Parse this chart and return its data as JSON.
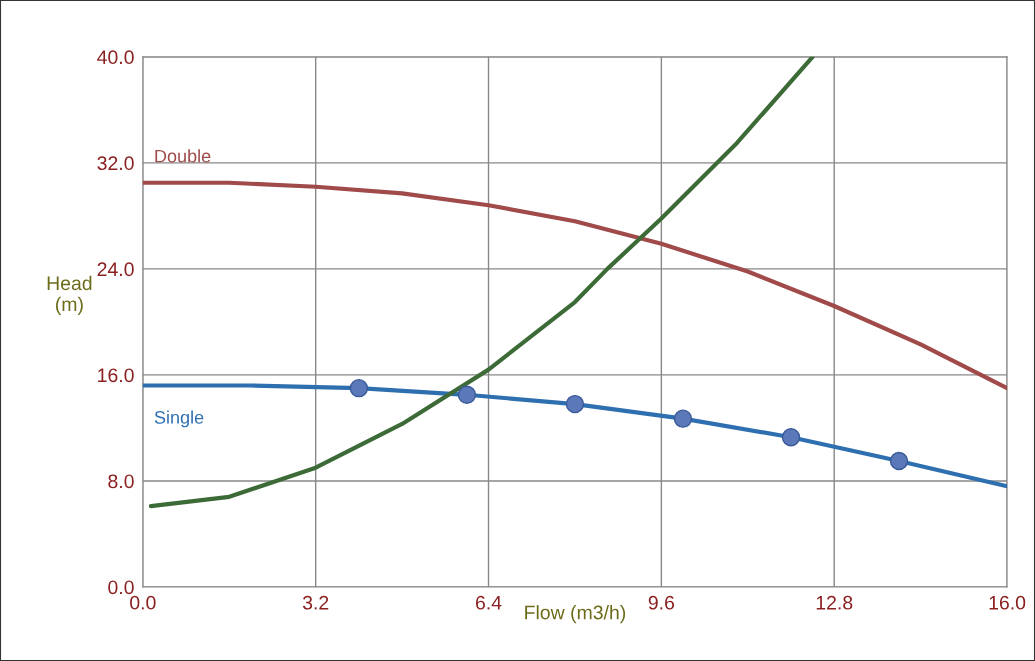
{
  "chart_data": {
    "type": "line",
    "xlabel": "Flow (m3/h)",
    "ylabel": "Head\n(m)",
    "series": [
      {
        "name": "Double",
        "color": "#a04a4a",
        "x": [
          0,
          1.6,
          3.2,
          4.8,
          6.4,
          8.0,
          9.6,
          11.2,
          12.8,
          14.4,
          16.0
        ],
        "values": [
          30.5,
          30.5,
          30.2,
          29.7,
          28.8,
          27.6,
          25.9,
          23.8,
          21.2,
          18.3,
          15.0
        ]
      },
      {
        "name": "Single",
        "color": "#2e6fb0",
        "x": [
          0,
          2,
          4,
          6,
          8,
          10,
          12,
          14,
          16
        ],
        "values": [
          15.2,
          15.2,
          15.0,
          14.5,
          13.8,
          12.7,
          11.3,
          9.5,
          7.6
        ]
      },
      {
        "color": "#5b78b8",
        "type": "scatter",
        "marker": "circle",
        "x": [
          4,
          6,
          8,
          10,
          12,
          14
        ],
        "values": [
          15.0,
          14.5,
          13.8,
          12.7,
          11.3,
          9.5
        ]
      },
      {
        "color": "#3d6b38",
        "x": [
          0.15,
          1.6,
          3.2,
          4.8,
          6.4,
          8.0,
          8.6,
          9.6,
          11.0,
          12.4
        ],
        "values": [
          6.1,
          6.8,
          9.0,
          12.3,
          16.4,
          21.5,
          24.0,
          27.8,
          33.5,
          40.0
        ]
      }
    ],
    "xlim": [
      0,
      16
    ],
    "ylim": [
      0,
      40
    ],
    "xticks": [
      {
        "value": 0,
        "label": "0.0"
      },
      {
        "value": 3.2,
        "label": "3.2"
      },
      {
        "value": 6.4,
        "label": "6.4"
      },
      {
        "value": 9.6,
        "label": "9.6"
      },
      {
        "value": 12.8,
        "label": "12.8"
      },
      {
        "value": 16,
        "label": "16.0"
      }
    ],
    "yticks": [
      {
        "value": 0,
        "label": "0.0"
      },
      {
        "value": 8,
        "label": "8.0"
      },
      {
        "value": 16,
        "label": "16.0"
      },
      {
        "value": 24,
        "label": "24.0"
      },
      {
        "value": 32,
        "label": "32.0"
      },
      {
        "value": 40,
        "label": "40.0"
      }
    ],
    "grid": true,
    "line_style": "solid",
    "marker": "none"
  }
}
